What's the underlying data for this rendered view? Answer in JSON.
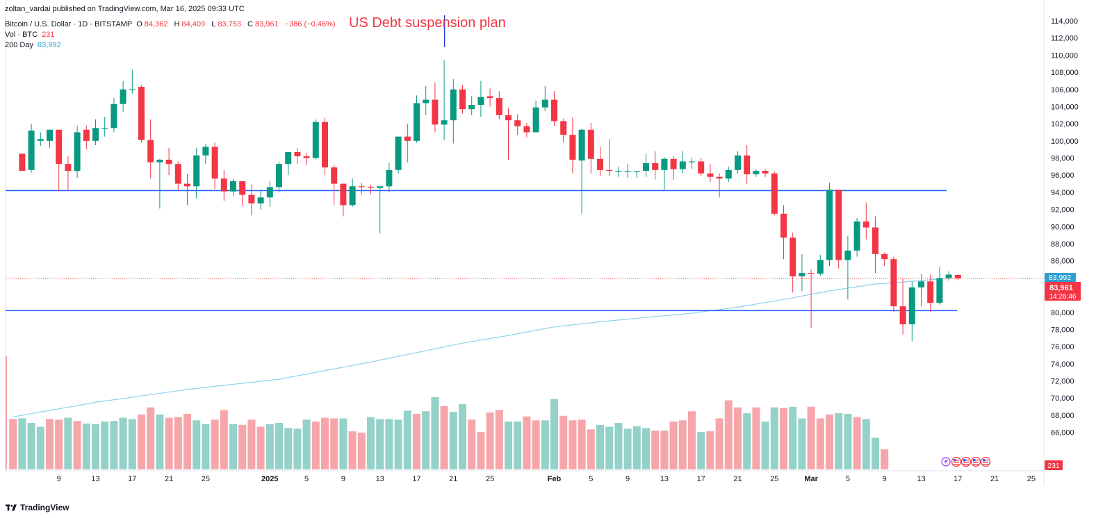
{
  "header": {
    "published": "zoltan_vardai published on TradingView.com, Mar 16, 2025 09:33 UTC",
    "symbol": "Bitcoin / U.S. Dollar · 1D · BITSTAMP",
    "o_label": "O",
    "o_value": "84,362",
    "h_label": "H",
    "h_value": "84,409",
    "l_label": "L",
    "l_value": "83,753",
    "c_label": "C",
    "c_value": "83,961",
    "change": "−386 (−0.46%)",
    "vol_label": "Vol · BTC",
    "vol_value": "231",
    "ma_label": "200 Day",
    "ma_value": "83,992"
  },
  "annotation": "US Debt suspension plan",
  "footer": {
    "brand": "TradingView"
  },
  "colors": {
    "up": "#089981",
    "down": "#f23645",
    "vol_up": "#94d1c9",
    "vol_down": "#f6a5aa",
    "ma": "#8fd0ee",
    "level": "#2962ff",
    "axis_text": "#131722"
  },
  "chart_data": {
    "type": "candlestick",
    "title": "Bitcoin / U.S. Dollar · 1D · BITSTAMP",
    "ylim": [
      62000,
      114000
    ],
    "y_ticks": [
      "66,000",
      "68,000",
      "70,000",
      "72,000",
      "74,000",
      "76,000",
      "78,000",
      "80,000",
      "82,000",
      "84,000",
      "86,000",
      "88,000",
      "90,000",
      "92,000",
      "94,000",
      "96,000",
      "98,000",
      "100,000",
      "102,000",
      "104,000",
      "106,000",
      "108,000",
      "110,000",
      "112,000",
      "114,000"
    ],
    "x_tick_labels": [
      {
        "day": 6,
        "label": "9"
      },
      {
        "day": 10,
        "label": "13"
      },
      {
        "day": 14,
        "label": "17"
      },
      {
        "day": 18,
        "label": "21"
      },
      {
        "day": 22,
        "label": "25"
      },
      {
        "day": 29,
        "label": "2025"
      },
      {
        "day": 33,
        "label": "5"
      },
      {
        "day": 37,
        "label": "9"
      },
      {
        "day": 41,
        "label": "13"
      },
      {
        "day": 45,
        "label": "17"
      },
      {
        "day": 49,
        "label": "21"
      },
      {
        "day": 53,
        "label": "25"
      },
      {
        "day": 60,
        "label": "Feb"
      },
      {
        "day": 64,
        "label": "5"
      },
      {
        "day": 68,
        "label": "9"
      },
      {
        "day": 72,
        "label": "13"
      },
      {
        "day": 76,
        "label": "17"
      },
      {
        "day": 80,
        "label": "21"
      },
      {
        "day": 84,
        "label": "25"
      },
      {
        "day": 88,
        "label": "Mar"
      },
      {
        "day": 92,
        "label": "5"
      },
      {
        "day": 96,
        "label": "9"
      },
      {
        "day": 100,
        "label": "13"
      },
      {
        "day": 104,
        "label": "17"
      },
      {
        "day": 108,
        "label": "21"
      },
      {
        "day": 112,
        "label": "25"
      }
    ],
    "candles": [
      [
        2,
        98500,
        98500,
        96500,
        96500
      ],
      [
        3,
        96600,
        102000,
        96300,
        101200
      ],
      [
        4,
        100000,
        101000,
        99400,
        100200
      ],
      [
        5,
        100000,
        101300,
        99200,
        101300
      ],
      [
        6,
        101300,
        101300,
        94100,
        97300
      ],
      [
        7,
        97300,
        98200,
        94300,
        96500
      ],
      [
        8,
        96500,
        101800,
        95700,
        101000
      ],
      [
        9,
        101300,
        101800,
        99000,
        100000
      ],
      [
        10,
        100000,
        102500,
        99500,
        101500
      ],
      [
        11,
        101500,
        102800,
        100500,
        101500
      ],
      [
        12,
        101500,
        105000,
        101000,
        104300
      ],
      [
        13,
        104300,
        107000,
        103400,
        106000
      ],
      [
        14,
        106000,
        108300,
        105500,
        106000
      ],
      [
        15,
        106300,
        106500,
        99800,
        100100
      ],
      [
        16,
        100100,
        102500,
        95600,
        97500
      ],
      [
        17,
        97500,
        97900,
        92100,
        97800
      ],
      [
        18,
        97800,
        99200,
        96000,
        97300
      ],
      [
        19,
        97300,
        97600,
        94200,
        95000
      ],
      [
        20,
        95000,
        96100,
        92500,
        94700
      ],
      [
        21,
        94700,
        99200,
        93300,
        98300
      ],
      [
        22,
        98300,
        99600,
        97300,
        99300
      ],
      [
        23,
        99300,
        99800,
        94400,
        95600
      ],
      [
        24,
        95600,
        96600,
        93000,
        94100
      ],
      [
        25,
        94100,
        95600,
        93600,
        95300
      ],
      [
        26,
        95300,
        95300,
        92400,
        93700
      ],
      [
        27,
        93700,
        94900,
        91300,
        92700
      ],
      [
        28,
        92700,
        94300,
        92000,
        93400
      ],
      [
        29,
        93400,
        95300,
        92300,
        94600
      ],
      [
        30,
        94600,
        97600,
        94000,
        97300
      ],
      [
        31,
        97300,
        98600,
        96000,
        98700
      ],
      [
        32,
        98700,
        99200,
        97300,
        98200
      ],
      [
        33,
        98200,
        98600,
        97200,
        98000
      ],
      [
        34,
        98000,
        102500,
        97800,
        102200
      ],
      [
        35,
        102200,
        102700,
        96000,
        96900
      ],
      [
        36,
        96900,
        97200,
        92500,
        95000
      ],
      [
        37,
        95000,
        95000,
        91200,
        92500
      ],
      [
        38,
        92500,
        95600,
        92300,
        94700
      ],
      [
        39,
        94700,
        95100,
        93700,
        94600
      ],
      [
        40,
        94600,
        94900,
        93800,
        94500
      ],
      [
        41,
        94500,
        94500,
        89200,
        94700
      ],
      [
        42,
        94700,
        97400,
        94000,
        96600
      ],
      [
        43,
        96600,
        100500,
        96200,
        100500
      ],
      [
        44,
        100500,
        102000,
        97500,
        100000
      ],
      [
        45,
        100000,
        105300,
        99800,
        104400
      ],
      [
        46,
        104400,
        106400,
        103000,
        104800
      ],
      [
        47,
        104800,
        106800,
        101000,
        101900
      ],
      [
        48,
        101900,
        109400,
        100100,
        102400
      ],
      [
        49,
        102400,
        107200,
        99700,
        106000
      ],
      [
        50,
        106000,
        106500,
        103200,
        103700
      ],
      [
        51,
        103700,
        105200,
        103000,
        104200
      ],
      [
        52,
        104200,
        107000,
        102800,
        105100
      ],
      [
        53,
        105200,
        106100,
        104000,
        105000
      ],
      [
        54,
        105000,
        105800,
        102500,
        103000
      ],
      [
        55,
        103000,
        103800,
        97800,
        102400
      ],
      [
        56,
        102400,
        103100,
        100700,
        101700
      ],
      [
        57,
        101700,
        102100,
        100400,
        101000
      ],
      [
        58,
        101000,
        104700,
        101000,
        103900
      ],
      [
        59,
        103900,
        106400,
        103500,
        104800
      ],
      [
        60,
        104800,
        105800,
        101700,
        102300
      ],
      [
        61,
        102300,
        102600,
        99800,
        100700
      ],
      [
        62,
        100700,
        102700,
        96200,
        97800
      ],
      [
        63,
        97700,
        101400,
        91500,
        101300
      ],
      [
        64,
        101300,
        102100,
        96200,
        97900
      ],
      [
        65,
        97900,
        99300,
        95900,
        96600
      ],
      [
        66,
        96600,
        100200,
        95900,
        96500
      ],
      [
        67,
        96500,
        97000,
        95800,
        96500
      ],
      [
        68,
        96500,
        97300,
        95700,
        96500
      ],
      [
        69,
        96500,
        96500,
        95700,
        96500
      ],
      [
        70,
        96500,
        98500,
        95800,
        97400
      ],
      [
        71,
        97400,
        98800,
        95500,
        96600
      ],
      [
        72,
        96600,
        98100,
        94300,
        97900
      ],
      [
        73,
        97900,
        98200,
        95400,
        96700
      ],
      [
        74,
        96700,
        98800,
        96200,
        97600
      ],
      [
        75,
        97600,
        98000,
        96700,
        97600
      ],
      [
        76,
        97600,
        98000,
        95900,
        96200
      ],
      [
        77,
        96200,
        97300,
        95200,
        95800
      ],
      [
        78,
        95800,
        96200,
        93400,
        95600
      ],
      [
        79,
        95600,
        97000,
        95200,
        96600
      ],
      [
        80,
        96600,
        98800,
        96200,
        98300
      ],
      [
        81,
        98300,
        99500,
        95000,
        96100
      ],
      [
        82,
        96100,
        96700,
        95800,
        96500
      ],
      [
        83,
        96500,
        96700,
        95800,
        96200
      ],
      [
        84,
        96200,
        96400,
        91300,
        91500
      ],
      [
        85,
        91500,
        92500,
        86200,
        88700
      ],
      [
        86,
        88700,
        89300,
        82300,
        84200
      ],
      [
        87,
        84200,
        86800,
        82500,
        84600
      ],
      [
        88,
        84600,
        85000,
        78200,
        84500
      ],
      [
        89,
        84500,
        86700,
        84200,
        86100
      ],
      [
        90,
        86100,
        95100,
        85400,
        94300
      ],
      [
        91,
        94300,
        94300,
        85100,
        86100
      ],
      [
        92,
        86100,
        88900,
        81500,
        87200
      ],
      [
        93,
        87200,
        91000,
        86500,
        90600
      ],
      [
        94,
        90600,
        92800,
        88500,
        89900
      ],
      [
        95,
        89900,
        91200,
        84600,
        86800
      ],
      [
        96,
        86800,
        87000,
        85400,
        86200
      ],
      [
        97,
        86200,
        86500,
        80000,
        80700
      ],
      [
        98,
        80700,
        83900,
        77400,
        78600
      ],
      [
        99,
        78600,
        83600,
        76600,
        82900
      ],
      [
        100,
        82900,
        84500,
        80700,
        83600
      ],
      [
        101,
        83600,
        84400,
        80000,
        81100
      ],
      [
        102,
        81100,
        85300,
        80900,
        84000
      ],
      [
        103,
        84000,
        84800,
        83700,
        84400
      ],
      [
        104,
        84362,
        84409,
        83753,
        83961
      ]
    ],
    "volumes": [
      [
        1,
        78000,
        0
      ],
      [
        2,
        79000,
        1
      ],
      [
        3,
        72000,
        1
      ],
      [
        4,
        66000,
        1
      ],
      [
        5,
        78000,
        0
      ],
      [
        6,
        77000,
        0
      ],
      [
        7,
        80000,
        1
      ],
      [
        8,
        75000,
        0
      ],
      [
        9,
        71000,
        1
      ],
      [
        10,
        70000,
        1
      ],
      [
        11,
        74000,
        1
      ],
      [
        12,
        75000,
        1
      ],
      [
        13,
        80000,
        1
      ],
      [
        14,
        78000,
        1
      ],
      [
        15,
        85000,
        0
      ],
      [
        16,
        96000,
        0
      ],
      [
        17,
        85000,
        1
      ],
      [
        18,
        80000,
        0
      ],
      [
        19,
        81000,
        0
      ],
      [
        20,
        86000,
        0
      ],
      [
        21,
        76000,
        1
      ],
      [
        22,
        70000,
        1
      ],
      [
        23,
        77000,
        0
      ],
      [
        24,
        92000,
        0
      ],
      [
        25,
        70000,
        1
      ],
      [
        26,
        69000,
        0
      ],
      [
        27,
        77000,
        0
      ],
      [
        28,
        66000,
        0
      ],
      [
        29,
        70000,
        1
      ],
      [
        30,
        72000,
        1
      ],
      [
        31,
        64000,
        1
      ],
      [
        32,
        63000,
        1
      ],
      [
        33,
        77000,
        1
      ],
      [
        34,
        74000,
        0
      ],
      [
        35,
        80000,
        0
      ],
      [
        36,
        79000,
        0
      ],
      [
        37,
        79000,
        1
      ],
      [
        38,
        59000,
        0
      ],
      [
        39,
        57000,
        0
      ],
      [
        40,
        81000,
        1
      ],
      [
        41,
        78000,
        1
      ],
      [
        42,
        78000,
        1
      ],
      [
        43,
        77000,
        1
      ],
      [
        44,
        91000,
        1
      ],
      [
        45,
        86000,
        0
      ],
      [
        46,
        90000,
        1
      ],
      [
        47,
        112000,
        1
      ],
      [
        48,
        98000,
        0
      ],
      [
        49,
        89000,
        1
      ],
      [
        50,
        101000,
        1
      ],
      [
        51,
        77000,
        0
      ],
      [
        52,
        58000,
        0
      ],
      [
        53,
        88000,
        0
      ],
      [
        54,
        92000,
        0
      ],
      [
        55,
        74000,
        1
      ],
      [
        56,
        74000,
        1
      ],
      [
        57,
        82000,
        0
      ],
      [
        58,
        76000,
        0
      ],
      [
        59,
        76000,
        1
      ],
      [
        60,
        109000,
        1
      ],
      [
        61,
        83000,
        0
      ],
      [
        62,
        76000,
        0
      ],
      [
        63,
        77000,
        0
      ],
      [
        64,
        62000,
        0
      ],
      [
        65,
        69000,
        1
      ],
      [
        66,
        66000,
        1
      ],
      [
        67,
        72000,
        1
      ],
      [
        68,
        63000,
        1
      ],
      [
        69,
        67000,
        1
      ],
      [
        70,
        64000,
        1
      ],
      [
        71,
        60000,
        0
      ],
      [
        72,
        60000,
        0
      ],
      [
        73,
        74000,
        0
      ],
      [
        74,
        76000,
        0
      ],
      [
        75,
        90000,
        0
      ],
      [
        76,
        58000,
        1
      ],
      [
        77,
        59000,
        0
      ],
      [
        78,
        79000,
        0
      ],
      [
        79,
        107000,
        0
      ],
      [
        80,
        96000,
        0
      ],
      [
        81,
        87000,
        1
      ],
      [
        82,
        96000,
        0
      ],
      [
        83,
        74000,
        1
      ],
      [
        84,
        96000,
        1
      ],
      [
        85,
        95000,
        0
      ],
      [
        86,
        97000,
        1
      ],
      [
        87,
        79000,
        1
      ],
      [
        88,
        97000,
        0
      ],
      [
        89,
        79000,
        0
      ],
      [
        90,
        85000,
        0
      ],
      [
        91,
        87000,
        1
      ],
      [
        92,
        86000,
        1
      ],
      [
        93,
        81000,
        0
      ],
      [
        94,
        78000,
        1
      ],
      [
        95,
        49000,
        1
      ],
      [
        96,
        31000,
        0
      ]
    ],
    "volume_spike_day": 0,
    "ma200": [
      [
        1,
        67800
      ],
      [
        10,
        69500
      ],
      [
        20,
        71000
      ],
      [
        30,
        72200
      ],
      [
        40,
        74200
      ],
      [
        50,
        76400
      ],
      [
        55,
        77300
      ],
      [
        60,
        78300
      ],
      [
        65,
        78900
      ],
      [
        70,
        79400
      ],
      [
        75,
        79900
      ],
      [
        80,
        80600
      ],
      [
        85,
        81500
      ],
      [
        90,
        82500
      ],
      [
        95,
        83300
      ],
      [
        100,
        83700
      ],
      [
        103,
        83992
      ]
    ],
    "horizontal_levels": [
      94200,
      80200
    ],
    "current_price": 83961,
    "price_tags": {
      "ma": "83,992",
      "close": "83,961",
      "countdown": "14:26:46",
      "volume": "231"
    },
    "annotation_day": 48
  }
}
